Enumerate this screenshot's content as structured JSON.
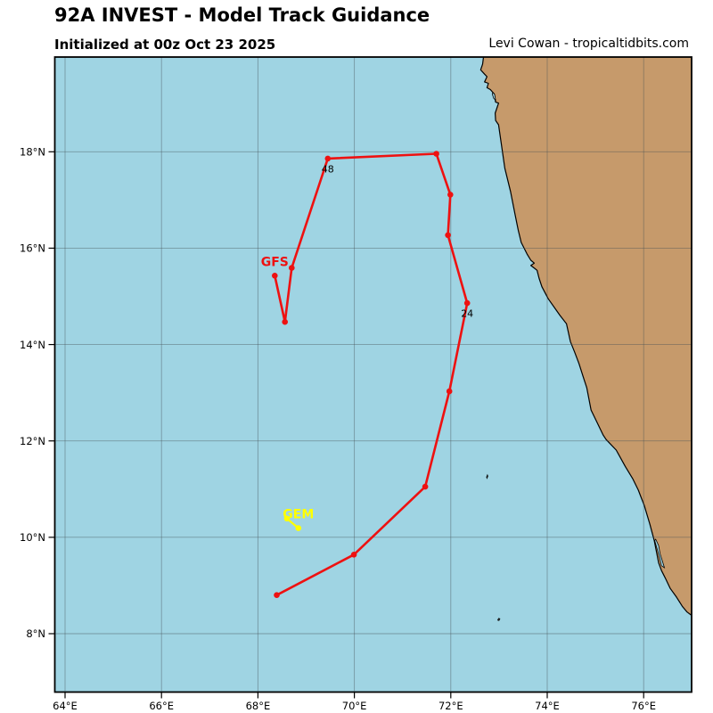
{
  "header": {
    "title": "92A INVEST - Model Track Guidance",
    "initialized": "Initialized at 00z Oct 23 2025",
    "attribution": "Levi Cowan - tropicaltidbits.com"
  },
  "colors": {
    "ocean": "#9fd4e3",
    "land": "#c69a6b",
    "coast": "#000000",
    "grid": "#445055",
    "frame": "#000000",
    "hour_label": "#000000"
  },
  "map": {
    "lon_ticks": [
      {
        "value": 64,
        "label": "64°E"
      },
      {
        "value": 66,
        "label": "66°E"
      },
      {
        "value": 68,
        "label": "68°E"
      },
      {
        "value": 70,
        "label": "70°E"
      },
      {
        "value": 72,
        "label": "72°E"
      },
      {
        "value": 74,
        "label": "74°E"
      },
      {
        "value": 76,
        "label": "76°E"
      }
    ],
    "lat_ticks": [
      {
        "value": 8,
        "label": "8°N"
      },
      {
        "value": 10,
        "label": "10°N"
      },
      {
        "value": 12,
        "label": "12°N"
      },
      {
        "value": 14,
        "label": "14°N"
      },
      {
        "value": 16,
        "label": "16°N"
      },
      {
        "value": 18,
        "label": "18°N"
      }
    ],
    "visible_lon_range": [
      63.8,
      77.0
    ],
    "visible_lat_range": [
      6.8,
      20.0
    ]
  },
  "chart_data": {
    "type": "line",
    "title": "92A INVEST - Model Track Guidance",
    "tracks": [
      {
        "id": "gfs",
        "name": "GFS",
        "color": "#ee1111",
        "points": [
          {
            "lon": 68.39,
            "lat": 8.8
          },
          {
            "lon": 69.99,
            "lat": 9.64
          },
          {
            "lon": 71.47,
            "lat": 11.05
          },
          {
            "lon": 71.97,
            "lat": 13.03
          },
          {
            "lon": 72.34,
            "lat": 14.86,
            "hour": "24"
          },
          {
            "lon": 71.94,
            "lat": 16.27
          },
          {
            "lon": 71.99,
            "lat": 17.11
          },
          {
            "lon": 71.7,
            "lat": 17.96
          },
          {
            "lon": 69.45,
            "lat": 17.86,
            "hour": "48"
          },
          {
            "lon": 68.7,
            "lat": 15.59
          },
          {
            "lon": 68.56,
            "lat": 14.47
          },
          {
            "lon": 68.35,
            "lat": 15.43
          }
        ]
      },
      {
        "id": "gem",
        "name": "GEM",
        "color": "#ffff00",
        "points": [
          {
            "lon": 68.6,
            "lat": 10.39
          },
          {
            "lon": 68.84,
            "lat": 10.19
          }
        ]
      }
    ]
  },
  "geography": {
    "coastline": [
      [
        72.68,
        19.98
      ],
      [
        72.66,
        19.82
      ],
      [
        72.62,
        19.7
      ],
      [
        72.7,
        19.61
      ],
      [
        72.75,
        19.56
      ],
      [
        72.7,
        19.45
      ],
      [
        72.78,
        19.42
      ],
      [
        72.75,
        19.33
      ],
      [
        72.82,
        19.29
      ],
      [
        72.9,
        19.2
      ],
      [
        72.93,
        19.03
      ],
      [
        72.99,
        19.01
      ],
      [
        72.92,
        18.8
      ],
      [
        72.93,
        18.65
      ],
      [
        72.99,
        18.56
      ],
      [
        73.12,
        17.66
      ],
      [
        73.24,
        17.17
      ],
      [
        73.33,
        16.71
      ],
      [
        73.4,
        16.37
      ],
      [
        73.46,
        16.12
      ],
      [
        73.58,
        15.88
      ],
      [
        73.66,
        15.75
      ],
      [
        73.73,
        15.69
      ],
      [
        73.66,
        15.64
      ],
      [
        73.74,
        15.58
      ],
      [
        73.79,
        15.54
      ],
      [
        73.83,
        15.38
      ],
      [
        73.89,
        15.2
      ],
      [
        74.02,
        14.95
      ],
      [
        74.26,
        14.61
      ],
      [
        74.4,
        14.43
      ],
      [
        74.48,
        14.06
      ],
      [
        74.57,
        13.84
      ],
      [
        74.66,
        13.6
      ],
      [
        74.74,
        13.35
      ],
      [
        74.82,
        13.1
      ],
      [
        74.91,
        12.64
      ],
      [
        75.04,
        12.37
      ],
      [
        75.16,
        12.12
      ],
      [
        75.22,
        12.03
      ],
      [
        75.43,
        11.81
      ],
      [
        75.62,
        11.47
      ],
      [
        75.77,
        11.22
      ],
      [
        75.89,
        10.98
      ],
      [
        75.95,
        10.82
      ],
      [
        76.01,
        10.67
      ],
      [
        76.13,
        10.27
      ],
      [
        76.16,
        10.15
      ],
      [
        76.22,
        9.93
      ],
      [
        76.31,
        9.47
      ],
      [
        76.37,
        9.31
      ],
      [
        76.43,
        9.19
      ],
      [
        76.46,
        9.13
      ],
      [
        76.55,
        8.94
      ],
      [
        76.68,
        8.76
      ],
      [
        76.8,
        8.57
      ],
      [
        76.9,
        8.45
      ],
      [
        76.98,
        8.39
      ]
    ],
    "coast_closure": [
      [
        77.3,
        8.3
      ],
      [
        77.3,
        20.3
      ],
      [
        72.68,
        20.3
      ]
    ],
    "harbor_notch": [
      [
        72.87,
        19.23
      ],
      [
        72.91,
        19.19
      ],
      [
        72.93,
        19.07
      ],
      [
        72.89,
        19.11
      ],
      [
        72.86,
        19.2
      ]
    ],
    "lagoon": [
      [
        76.25,
        9.96
      ],
      [
        76.31,
        9.83
      ],
      [
        76.34,
        9.66
      ],
      [
        76.39,
        9.5
      ],
      [
        76.43,
        9.37
      ],
      [
        76.37,
        9.41
      ],
      [
        76.33,
        9.57
      ],
      [
        76.28,
        9.76
      ],
      [
        76.23,
        9.93
      ]
    ],
    "islands": [
      [
        [
          72.76,
          11.3
        ],
        [
          72.77,
          11.27
        ],
        [
          72.75,
          11.22
        ],
        [
          72.74,
          11.25
        ]
      ],
      [
        [
          72.97,
          8.28
        ],
        [
          73.0,
          8.27
        ],
        [
          73.02,
          8.31
        ],
        [
          72.99,
          8.32
        ]
      ]
    ]
  }
}
